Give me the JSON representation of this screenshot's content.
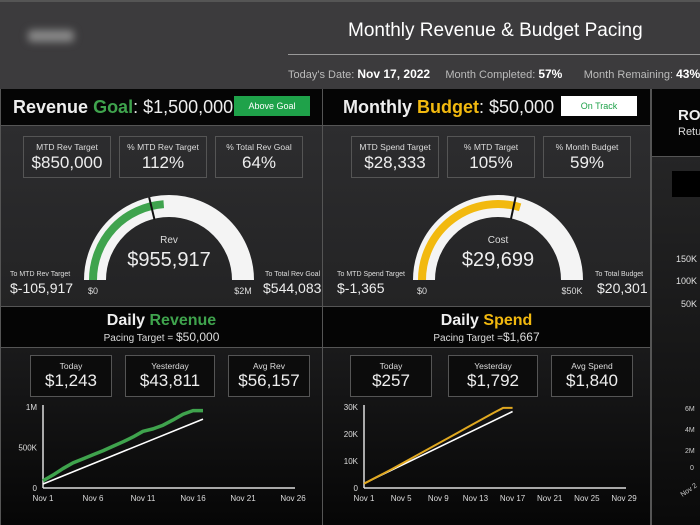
{
  "header": {
    "title": "Monthly Revenue & Budget Pacing",
    "date_label": "Today's Date:",
    "date": "Nov 17, 2022",
    "completed_label": "Month Completed:",
    "completed": "57%",
    "remaining_label": "Month Remaining:",
    "remaining": "43%"
  },
  "colors": {
    "green": "#3fa34d",
    "gold": "#f2b90f",
    "badge_green": "#1fa24a"
  },
  "revenue": {
    "title_a": "Revenue",
    "title_b": "Goal",
    "title_c": ": $1,500,000",
    "badge": "Above Goal",
    "kpis": [
      {
        "label": "MTD Rev Target",
        "value": "$850,000"
      },
      {
        "label": "% MTD Rev Target",
        "value": "112%"
      },
      {
        "label": "% Total Rev Goal",
        "value": "64%"
      }
    ],
    "gauge": {
      "label": "Rev",
      "value_text": "$955,917",
      "min_label": "$0",
      "max_label": "$2M",
      "value": 955917,
      "max": 2000000,
      "target": 850000
    },
    "left_label": "To MTD Rev Target",
    "left_value": "$-105,917",
    "right_label": "To Total Rev Goal",
    "right_value": "$544,083",
    "daily": {
      "title_a": "Daily",
      "title_b": "Revenue",
      "pacing_label": "Pacing Target =",
      "pacing_value": "$50,000",
      "kpis": [
        {
          "label": "Today",
          "value": "$1,243"
        },
        {
          "label": "Yesterday",
          "value": "$43,811"
        },
        {
          "label": "Avg Rev",
          "value": "$56,157"
        }
      ]
    }
  },
  "budget": {
    "title_a": "Monthly",
    "title_b": "Budget",
    "title_c": ": $50,000",
    "badge": "On Track",
    "kpis": [
      {
        "label": "MTD Spend Target",
        "value": "$28,333"
      },
      {
        "label": "% MTD Target",
        "value": "105%"
      },
      {
        "label": "% Month Budget",
        "value": "59%"
      }
    ],
    "gauge": {
      "label": "Cost",
      "value_text": "$29,699",
      "min_label": "$0",
      "max_label": "$50K",
      "value": 29699,
      "max": 50000,
      "target": 28333
    },
    "left_label": "To MTD Spend Target",
    "left_value": "$-1,365",
    "right_label": "To Total Budget",
    "right_value": "$20,301",
    "daily": {
      "title_a": "Daily",
      "title_b": "Spend",
      "pacing_label": "Pacing Target =",
      "pacing_value": "$1,667",
      "kpis": [
        {
          "label": "Today",
          "value": "$257"
        },
        {
          "label": "Yesterday",
          "value": "$1,792"
        },
        {
          "label": "Avg Spend",
          "value": "$1,840"
        }
      ]
    }
  },
  "roas": {
    "title": "RO",
    "subtitle": "Retu",
    "ticks_top": [
      "150K",
      "100K",
      "50K"
    ],
    "ticks_bottom": [
      "6M",
      "4M",
      "2M",
      "0"
    ],
    "x_label": "Nov 2"
  },
  "chart_data": [
    {
      "type": "line",
      "xlabel": "",
      "ylabel": "",
      "x_ticks": [
        "Nov 1",
        "Nov 6",
        "Nov 11",
        "Nov 16",
        "Nov 21",
        "Nov 26"
      ],
      "y_ticks": [
        "0",
        "500K",
        "1M"
      ],
      "ylim": [
        0,
        1000000
      ],
      "xlim": [
        1,
        26
      ],
      "series": [
        {
          "color": "#3fa34d",
          "x": [
            1,
            2,
            3,
            4,
            5,
            6,
            7,
            8,
            9,
            10,
            11,
            12,
            13,
            14,
            15,
            16,
            17
          ],
          "values": [
            90000,
            160000,
            240000,
            310000,
            360000,
            410000,
            460000,
            515000,
            570000,
            630000,
            700000,
            730000,
            775000,
            840000,
            910000,
            955000,
            955917
          ]
        },
        {
          "color": "#ffffff",
          "x": [
            1,
            17
          ],
          "values": [
            50000,
            850000
          ]
        }
      ]
    },
    {
      "type": "line",
      "xlabel": "",
      "ylabel": "",
      "x_ticks": [
        "Nov 1",
        "Nov 5",
        "Nov 9",
        "Nov 13",
        "Nov 17",
        "Nov 21",
        "Nov 25",
        "Nov 29"
      ],
      "y_ticks": [
        "0",
        "10K",
        "20K",
        "30K"
      ],
      "ylim": [
        0,
        30000
      ],
      "xlim": [
        1,
        29
      ],
      "series": [
        {
          "color": "#e0a820",
          "x": [
            1,
            2,
            3,
            4,
            5,
            6,
            7,
            8,
            9,
            10,
            11,
            12,
            13,
            14,
            15,
            16,
            17
          ],
          "values": [
            1600,
            3400,
            5200,
            7000,
            8900,
            10800,
            12700,
            14600,
            16500,
            18400,
            20300,
            22200,
            24100,
            26000,
            27900,
            29699,
            29699
          ]
        },
        {
          "color": "#ffffff",
          "x": [
            1,
            17
          ],
          "values": [
            1667,
            28333
          ]
        }
      ]
    }
  ]
}
